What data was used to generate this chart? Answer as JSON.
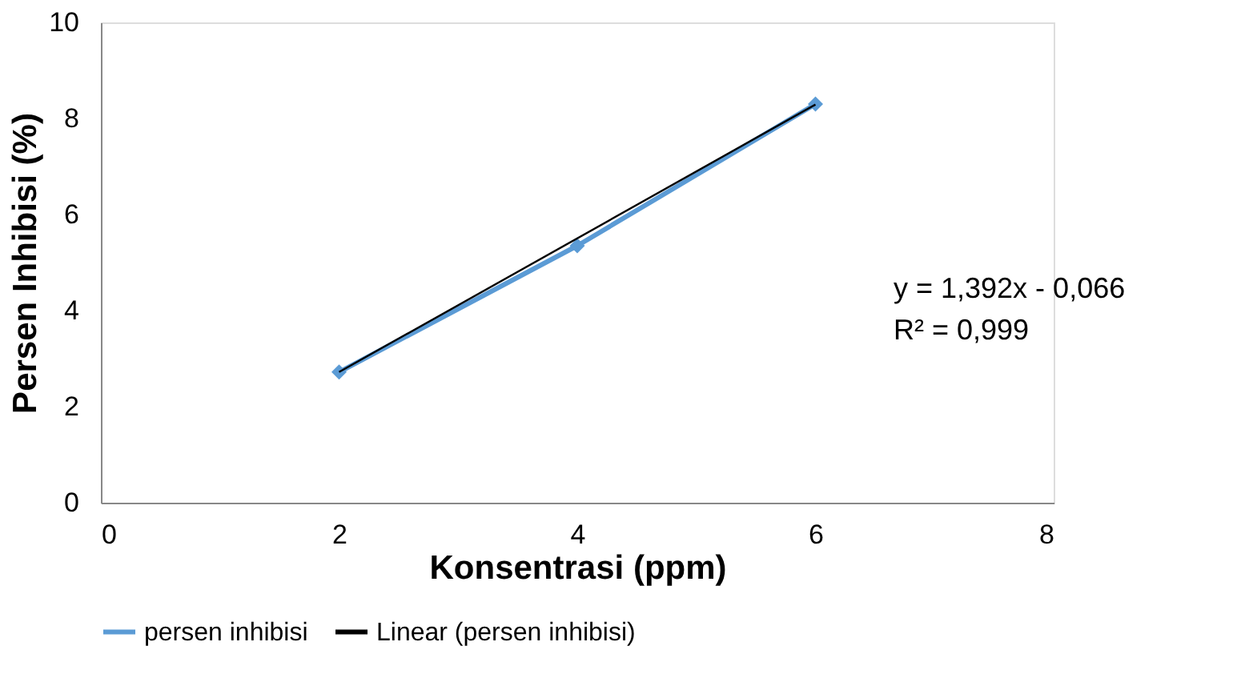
{
  "chart_data": {
    "type": "line",
    "xlabel": "Konsentrasi (ppm)",
    "ylabel": "Persen Inhibisi (%)",
    "x": [
      2,
      4,
      6
    ],
    "series": [
      {
        "name": "persen inhibisi",
        "color": "#5b9bd5",
        "values": [
          2.72,
          5.35,
          8.3
        ],
        "marker": "diamond"
      },
      {
        "name": "Linear (persen inhibisi)",
        "color": "#000000",
        "type": "line",
        "x": [
          2,
          6
        ],
        "values": [
          2.72,
          8.29
        ],
        "marker": "none"
      }
    ],
    "xlim": [
      0,
      8
    ],
    "xticks": [
      0,
      2,
      4,
      6,
      8
    ],
    "ylim": [
      0,
      10
    ],
    "yticks": [
      0,
      2,
      4,
      6,
      8,
      10
    ],
    "grid": false,
    "legend": "bottom",
    "annotations": [
      "y   = 1,392x - 0,066",
      "R² = 0,999"
    ]
  }
}
